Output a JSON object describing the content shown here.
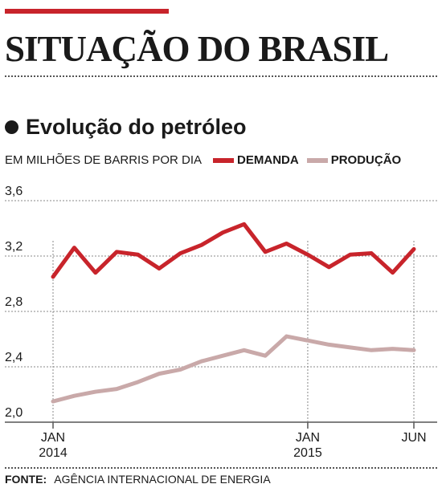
{
  "header": {
    "title": "SITUAÇÃO DO BRASIL",
    "accent_color": "#c8242b"
  },
  "chart_data": {
    "type": "line",
    "title": "Evolução do petróleo",
    "ylabel": "EM MILHÕES DE BARRIS POR DIA",
    "xlabel": "",
    "ylim": [
      2.0,
      3.6
    ],
    "yticks": [
      "2,0",
      "2,4",
      "2,8",
      "3,2",
      "3,6"
    ],
    "ytick_values": [
      2.0,
      2.4,
      2.8,
      3.2,
      3.6
    ],
    "x": [
      "2014-01",
      "2014-02",
      "2014-03",
      "2014-04",
      "2014-05",
      "2014-06",
      "2014-07",
      "2014-08",
      "2014-09",
      "2014-10",
      "2014-11",
      "2014-12",
      "2015-01",
      "2015-02",
      "2015-03",
      "2015-04",
      "2015-05",
      "2015-06"
    ],
    "xtick_labels": [
      {
        "index": 0,
        "lines": [
          "JAN",
          "2014"
        ]
      },
      {
        "index": 12,
        "lines": [
          "JAN",
          "2015"
        ]
      },
      {
        "index": 17,
        "lines": [
          "JUN"
        ]
      }
    ],
    "grid": "horizontal",
    "legend_placement": "top",
    "series": [
      {
        "name": "DEMANDA",
        "color": "#c8242b",
        "values": [
          3.05,
          3.26,
          3.08,
          3.23,
          3.21,
          3.11,
          3.22,
          3.28,
          3.37,
          3.43,
          3.23,
          3.29,
          3.21,
          3.12,
          3.21,
          3.22,
          3.08,
          3.25
        ]
      },
      {
        "name": "PRODUÇÃO",
        "color": "#c9a9a9",
        "values": [
          2.15,
          2.19,
          2.22,
          2.24,
          2.29,
          2.35,
          2.38,
          2.44,
          2.48,
          2.52,
          2.48,
          2.62,
          2.59,
          2.56,
          2.54,
          2.52,
          2.53,
          2.52
        ]
      }
    ]
  },
  "source": {
    "label": "FONTE:",
    "text": "AGÊNCIA INTERNACIONAL DE ENERGIA"
  }
}
